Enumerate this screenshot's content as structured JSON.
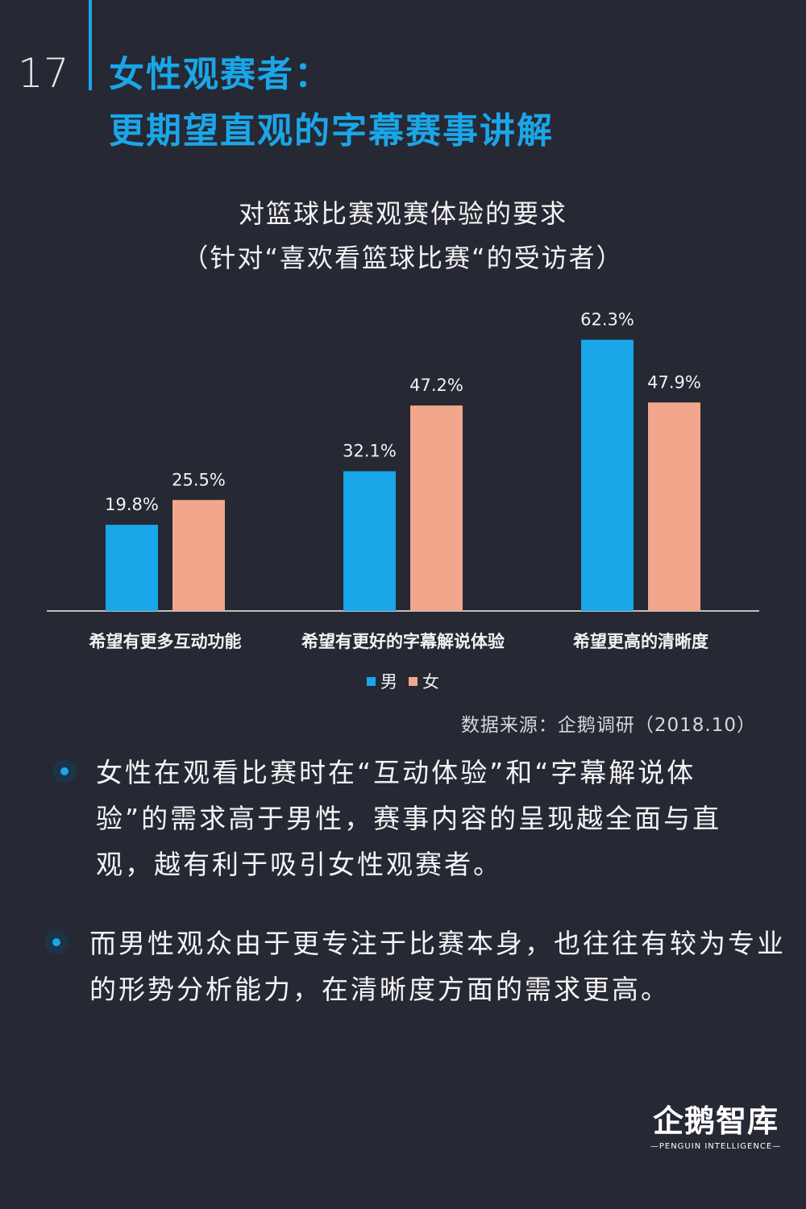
{
  "page_number": "17",
  "title": {
    "line1": "女性观赛者：",
    "line2": "更期望直观的字幕赛事讲解"
  },
  "colors": {
    "accent": "#1aa6e8",
    "male": "#19a7ea",
    "female": "#f2a78d",
    "background": "#262833"
  },
  "chart_data": {
    "type": "bar",
    "title": "对篮球比赛观赛体验的要求",
    "subtitle": "（针对“喜欢看篮球比赛“的受访者）",
    "categories": [
      "希望有更多互动功能",
      "希望有更好的字幕解说体验",
      "希望更高的清晰度"
    ],
    "series": [
      {
        "name": "男",
        "values": [
          19.8,
          32.1,
          62.3
        ],
        "labels": [
          "19.8%",
          "32.1%",
          "62.3%"
        ]
      },
      {
        "name": "女",
        "values": [
          25.5,
          47.2,
          47.9
        ],
        "labels": [
          "25.5%",
          "47.2%",
          "47.9%"
        ]
      }
    ],
    "ylim": [
      0,
      70
    ],
    "grid": false,
    "legend_position": "bottom"
  },
  "source": "数据来源：企鹅调研（2018.10）",
  "bullets": [
    "女性在观看比赛时在“互动体验”和“字幕解说体验”的需求高于男性，赛事内容的呈现越全面与直观，越有利于吸引女性观赛者。",
    "而男性观众由于更专注于比赛本身，也往往有较为专业的形势分析能力，在清晰度方面的需求更高。"
  ],
  "logo": {
    "name": "企鹅智库",
    "tagline": "—PENGUIN INTELLIGENCE—"
  }
}
